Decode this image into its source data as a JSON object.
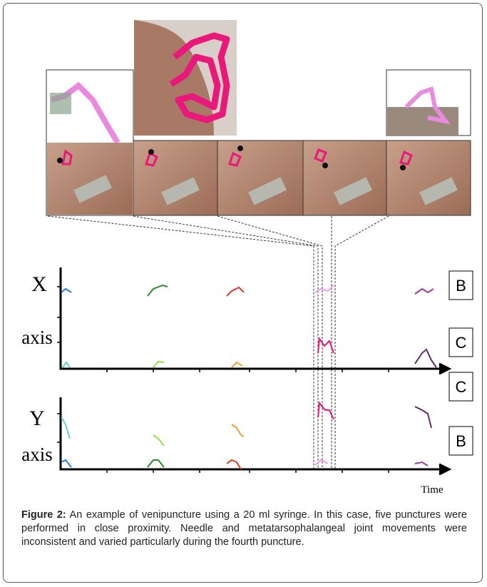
{
  "x_axis": {
    "title": "X",
    "subtitle": "axis"
  },
  "y_axis": {
    "title": "Y",
    "subtitle": "axis"
  },
  "time_label": "Time",
  "boxes": [
    "B",
    "C",
    "C",
    "B"
  ],
  "caption": {
    "label": "Figure 2:",
    "text": "An example of venipuncture using a 20 ml syringe. In this case, five punctures were performed in close proximity. Needle and metatarsophalangeal joint movements were inconsistent and varied particularly during the fourth puncture."
  }
}
